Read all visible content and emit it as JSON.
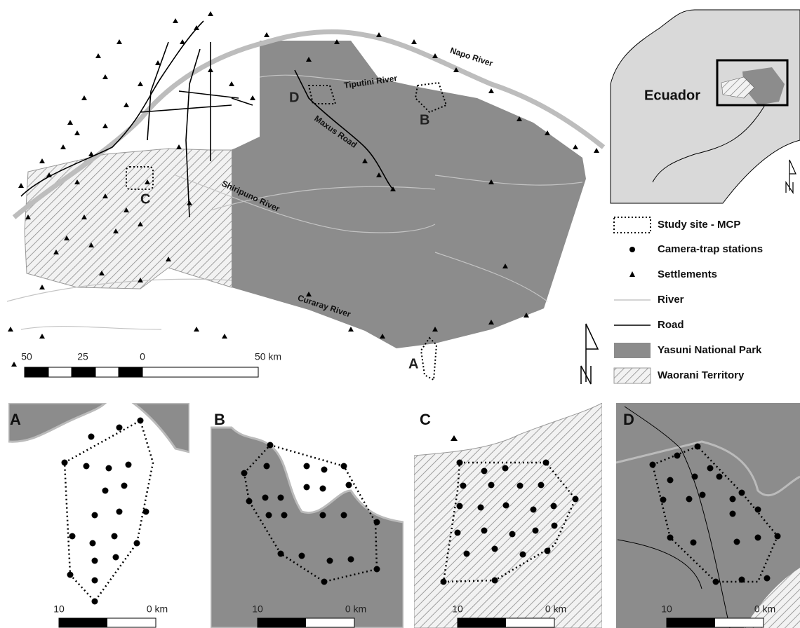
{
  "main_map": {
    "labels": [
      "Napo River",
      "Tiputini River",
      "Maxus Road",
      "Shiripuno River",
      "Curaray River"
    ],
    "sites": [
      "A",
      "B",
      "C",
      "D"
    ],
    "scale_bar": [
      "50",
      "25",
      "0",
      "50 km"
    ]
  },
  "inset": {
    "label": "Ecuador"
  },
  "legend": {
    "items": [
      "Study site - MCP",
      "Camera-trap stations",
      "Settlements",
      "River",
      "Road",
      "Yasuni National Park",
      "Waorani Territory"
    ]
  },
  "panels": [
    {
      "label": "A",
      "scale": [
        "10",
        "0 km"
      ]
    },
    {
      "label": "B",
      "scale": [
        "10",
        "0 km"
      ]
    },
    {
      "label": "C",
      "scale": [
        "10",
        "0 km"
      ]
    },
    {
      "label": "D",
      "scale": [
        "10",
        "0 km"
      ]
    }
  ]
}
